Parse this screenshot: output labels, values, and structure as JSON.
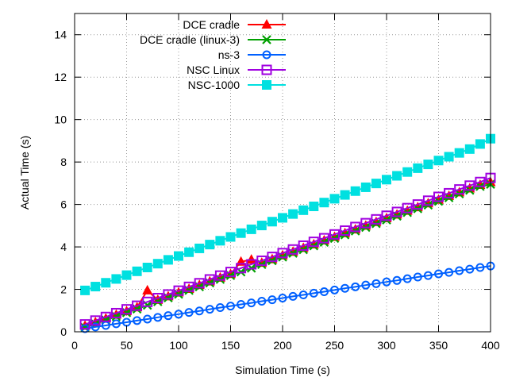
{
  "chart_data": {
    "type": "line",
    "xlabel": "Simulation Time (s)",
    "ylabel": "Actual Time (s)",
    "xlim": [
      0,
      400
    ],
    "ylim": [
      0,
      15
    ],
    "xticks": [
      0,
      50,
      100,
      150,
      200,
      250,
      300,
      350,
      400
    ],
    "yticks": [
      0,
      2,
      4,
      6,
      8,
      10,
      12,
      14
    ],
    "grid": true,
    "legend_position": "top-left",
    "x": [
      10,
      20,
      30,
      40,
      50,
      60,
      70,
      80,
      90,
      100,
      110,
      120,
      130,
      140,
      150,
      160,
      170,
      180,
      190,
      200,
      210,
      220,
      230,
      240,
      250,
      260,
      270,
      280,
      290,
      300,
      310,
      320,
      330,
      340,
      350,
      360,
      370,
      380,
      390,
      400
    ],
    "series": [
      {
        "name": "DCE cradle",
        "color": "#ff0000",
        "marker": "triangle",
        "values": [
          0.28,
          0.45,
          0.62,
          0.8,
          0.97,
          1.15,
          1.95,
          1.5,
          1.67,
          1.85,
          2.02,
          2.2,
          2.37,
          2.55,
          2.72,
          3.3,
          3.4,
          3.25,
          3.42,
          3.6,
          3.77,
          3.95,
          4.12,
          4.3,
          4.47,
          4.65,
          4.82,
          5.0,
          5.17,
          5.35,
          5.52,
          5.7,
          5.87,
          6.05,
          6.22,
          6.4,
          6.57,
          6.75,
          6.92,
          7.05
        ]
      },
      {
        "name": "DCE cradle (linux-3)",
        "color": "#00a000",
        "marker": "x",
        "values": [
          0.2,
          0.37,
          0.55,
          0.72,
          0.9,
          1.07,
          1.25,
          1.42,
          1.6,
          1.77,
          1.95,
          2.12,
          2.3,
          2.47,
          2.65,
          2.82,
          3.0,
          3.17,
          3.35,
          3.52,
          3.7,
          3.87,
          4.05,
          4.22,
          4.4,
          4.57,
          4.75,
          4.92,
          5.1,
          5.27,
          5.45,
          5.62,
          5.8,
          5.97,
          6.15,
          6.32,
          6.5,
          6.67,
          6.85,
          6.95
        ]
      },
      {
        "name": "ns-3",
        "color": "#0060ff",
        "marker": "circle",
        "values": [
          0.15,
          0.23,
          0.3,
          0.38,
          0.45,
          0.53,
          0.6,
          0.68,
          0.76,
          0.83,
          0.91,
          0.98,
          1.06,
          1.14,
          1.21,
          1.29,
          1.36,
          1.44,
          1.51,
          1.59,
          1.67,
          1.74,
          1.82,
          1.89,
          1.97,
          2.05,
          2.12,
          2.2,
          2.27,
          2.35,
          2.42,
          2.5,
          2.58,
          2.65,
          2.73,
          2.8,
          2.88,
          2.95,
          3.03,
          3.1
        ]
      },
      {
        "name": "NSC Linux",
        "color": "#a000e0",
        "marker": "square-open",
        "values": [
          0.35,
          0.53,
          0.7,
          0.88,
          1.06,
          1.23,
          1.41,
          1.59,
          1.76,
          1.94,
          2.12,
          2.29,
          2.47,
          2.65,
          2.82,
          3.0,
          3.18,
          3.35,
          3.53,
          3.71,
          3.88,
          4.06,
          4.24,
          4.41,
          4.59,
          4.77,
          4.94,
          5.12,
          5.3,
          5.47,
          5.65,
          5.83,
          6.0,
          6.18,
          6.36,
          6.53,
          6.71,
          6.89,
          7.06,
          7.25
        ]
      },
      {
        "name": "NSC-1000",
        "color": "#00e0e0",
        "marker": "square-filled",
        "values": [
          1.95,
          2.13,
          2.31,
          2.49,
          2.67,
          2.85,
          3.03,
          3.21,
          3.39,
          3.57,
          3.75,
          3.93,
          4.11,
          4.29,
          4.47,
          4.65,
          4.83,
          5.01,
          5.19,
          5.37,
          5.55,
          5.73,
          5.91,
          6.09,
          6.27,
          6.45,
          6.63,
          6.81,
          6.99,
          7.17,
          7.35,
          7.53,
          7.71,
          7.89,
          8.07,
          8.25,
          8.43,
          8.61,
          8.85,
          9.1
        ]
      }
    ]
  }
}
